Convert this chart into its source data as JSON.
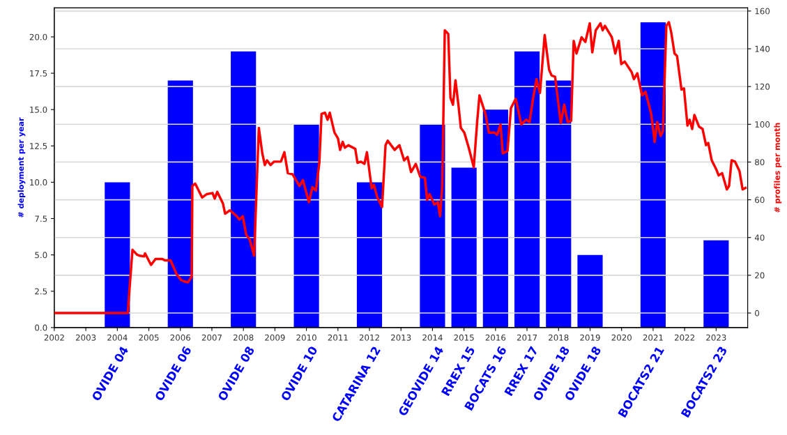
{
  "chart_data": {
    "type": "bar",
    "ylabel": "# deployment per year",
    "y2label": "# profiles per month",
    "xlim": [
      2002,
      2024
    ],
    "xticks": [
      2002,
      2003,
      2004,
      2005,
      2006,
      2007,
      2008,
      2009,
      2010,
      2011,
      2012,
      2013,
      2014,
      2015,
      2016,
      2017,
      2018,
      2019,
      2020,
      2021,
      2022,
      2023
    ],
    "ylim": [
      0,
      22
    ],
    "yticks": [
      {
        "value": 0,
        "label": "0.0"
      },
      {
        "value": 2.5,
        "label": "2.5"
      },
      {
        "value": 5,
        "label": "5.0"
      },
      {
        "value": 7.5,
        "label": "7.5"
      },
      {
        "value": 10,
        "label": "10.0"
      },
      {
        "value": 12.5,
        "label": "12.5"
      },
      {
        "value": 15,
        "label": "15.0"
      },
      {
        "value": 17.5,
        "label": "17.5"
      },
      {
        "value": 20,
        "label": "20.0"
      }
    ],
    "y2lim": [
      -7.7,
      161.7
    ],
    "y2ticks": [
      0,
      20,
      40,
      60,
      80,
      100,
      120,
      140,
      160
    ],
    "grid": "y2",
    "legend": false,
    "series": [
      {
        "color": "#0000ff",
        "x": [
          2004,
          2006,
          2008,
          2010,
          2012,
          2014,
          2015,
          2016,
          2017,
          2018,
          2019,
          2021,
          2023
        ],
        "values": [
          10,
          17,
          19,
          14,
          10,
          14,
          11,
          15,
          19,
          17,
          5,
          21,
          6
        ]
      },
      {
        "type": "line",
        "axis": "y2",
        "color": "#ff0000",
        "line_style": "solid",
        "marker": "none",
        "x": [
          2002.0,
          2004.33,
          2004.48,
          2004.62,
          2004.7,
          2004.85,
          2004.88,
          2005.07,
          2005.21,
          2005.43,
          2005.51,
          2005.69,
          2005.88,
          2006.02,
          2006.1,
          2006.24,
          2006.36,
          2006.38,
          2006.47,
          2006.69,
          2006.84,
          2007.02,
          2007.09,
          2007.17,
          2007.35,
          2007.42,
          2007.57,
          2007.79,
          2007.87,
          2007.98,
          2008.09,
          2008.2,
          2008.34,
          2008.49,
          2008.6,
          2008.68,
          2008.75,
          2008.86,
          2008.97,
          2009.19,
          2009.3,
          2009.41,
          2009.56,
          2009.78,
          2009.89,
          2010.08,
          2010.19,
          2010.3,
          2010.41,
          2010.48,
          2010.59,
          2010.67,
          2010.74,
          2010.89,
          2011.0,
          2011.07,
          2011.15,
          2011.22,
          2011.33,
          2011.55,
          2011.62,
          2011.73,
          2011.84,
          2011.92,
          2012.07,
          2012.14,
          2012.25,
          2012.4,
          2012.51,
          2012.58,
          2012.8,
          2012.95,
          2013.1,
          2013.21,
          2013.32,
          2013.47,
          2013.61,
          2013.76,
          2013.83,
          2013.91,
          2014.06,
          2014.17,
          2014.24,
          2014.31,
          2014.39,
          2014.5,
          2014.57,
          2014.65,
          2014.73,
          2014.83,
          2014.9,
          2015.01,
          2015.16,
          2015.31,
          2015.42,
          2015.49,
          2015.68,
          2015.79,
          2015.97,
          2016.05,
          2016.16,
          2016.23,
          2016.38,
          2016.49,
          2016.64,
          2016.82,
          2016.97,
          2017.08,
          2017.19,
          2017.3,
          2017.41,
          2017.56,
          2017.7,
          2017.78,
          2017.89,
          2018.07,
          2018.18,
          2018.29,
          2018.4,
          2018.48,
          2018.57,
          2018.73,
          2018.85,
          2018.99,
          2019.07,
          2019.18,
          2019.33,
          2019.4,
          2019.47,
          2019.69,
          2019.8,
          2019.91,
          2019.99,
          2020.1,
          2020.32,
          2020.39,
          2020.5,
          2020.65,
          2020.76,
          2020.94,
          2021.05,
          2021.13,
          2021.24,
          2021.31,
          2021.42,
          2021.5,
          2021.57,
          2021.68,
          2021.76,
          2021.9,
          2021.98,
          2022.09,
          2022.16,
          2022.24,
          2022.31,
          2022.46,
          2022.57,
          2022.68,
          2022.75,
          2022.86,
          2023.01,
          2023.08,
          2023.19,
          2023.34,
          2023.41,
          2023.49,
          2023.6,
          2023.74,
          2023.84,
          2023.93
        ],
        "values": [
          0,
          0,
          33.5,
          31,
          30.4,
          30,
          31.6,
          25.5,
          28.6,
          28.6,
          27.9,
          27.9,
          20.6,
          17.5,
          16.9,
          16.2,
          19.3,
          67.3,
          68.6,
          61.2,
          63,
          63.6,
          60.6,
          64.2,
          58.1,
          52.6,
          54.4,
          51.3,
          49.5,
          51.3,
          41.5,
          39,
          30.4,
          98.1,
          84.6,
          78.4,
          80.9,
          78.4,
          80.2,
          80.2,
          85.2,
          74.1,
          73.5,
          67.3,
          70.4,
          58.7,
          66.7,
          64.9,
          79.6,
          105.5,
          106.1,
          102.4,
          106.1,
          95.6,
          92.6,
          86.4,
          90.7,
          87.6,
          88.9,
          87,
          79.6,
          80.2,
          79,
          85.2,
          66.1,
          67.9,
          61.2,
          56.2,
          88.9,
          91.3,
          86.4,
          88.9,
          80.9,
          82.7,
          74.7,
          79,
          72.2,
          71.6,
          59.9,
          63,
          57.5,
          58.7,
          51.3,
          67.3,
          149.8,
          147.9,
          114.1,
          110.4,
          123.3,
          109.2,
          98.1,
          95.6,
          87,
          77.2,
          101.8,
          115.3,
          105.5,
          95.6,
          95.6,
          94.4,
          99.9,
          84.6,
          85.8,
          108.6,
          113.5,
          99.9,
          102.4,
          101.2,
          113.5,
          123.9,
          116.6,
          147.3,
          128.9,
          125.8,
          125.2,
          100.6,
          110.4,
          101.2,
          101.8,
          144.2,
          137.5,
          146.1,
          143.6,
          153.5,
          138.1,
          149.8,
          153.5,
          149.8,
          152.2,
          146.1,
          137.5,
          144.2,
          131.9,
          133.2,
          127.6,
          123.9,
          127,
          115.3,
          117.2,
          105.5,
          90.7,
          101.2,
          93.8,
          96.2,
          152.2,
          154.1,
          149.2,
          137.5,
          136.2,
          118.4,
          119,
          99.3,
          102.4,
          97.5,
          104.9,
          98.7,
          97.5,
          88.9,
          90.1,
          80.9,
          75.9,
          72.9,
          74.1,
          65.5,
          67.3,
          80.9,
          80.2,
          75.3,
          65.5,
          66.3
        ]
      }
    ],
    "annotations": [
      {
        "text": "OVIDE 04",
        "x": 2004,
        "y": 0
      },
      {
        "text": "OVIDE 06",
        "x": 2006,
        "y": 0
      },
      {
        "text": "OVIDE 08",
        "x": 2008,
        "y": 0
      },
      {
        "text": "OVIDE 10",
        "x": 2010,
        "y": 0
      },
      {
        "text": "CATARINA 12",
        "x": 2012,
        "y": 0
      },
      {
        "text": "GEOVIDE 14",
        "x": 2014,
        "y": 0
      },
      {
        "text": "RREX 15",
        "x": 2015,
        "y": 0
      },
      {
        "text": "BOCATS 16",
        "x": 2016,
        "y": 0
      },
      {
        "text": "RREX 17",
        "x": 2017,
        "y": 0
      },
      {
        "text": "OVIDE 18",
        "x": 2018,
        "y": 0
      },
      {
        "text": "OVIDE 18",
        "x": 2019,
        "y": 0
      },
      {
        "text": "BOCATS2 21",
        "x": 2021,
        "y": 0
      },
      {
        "text": "BOCATS2 23",
        "x": 2023,
        "y": 0
      }
    ]
  }
}
